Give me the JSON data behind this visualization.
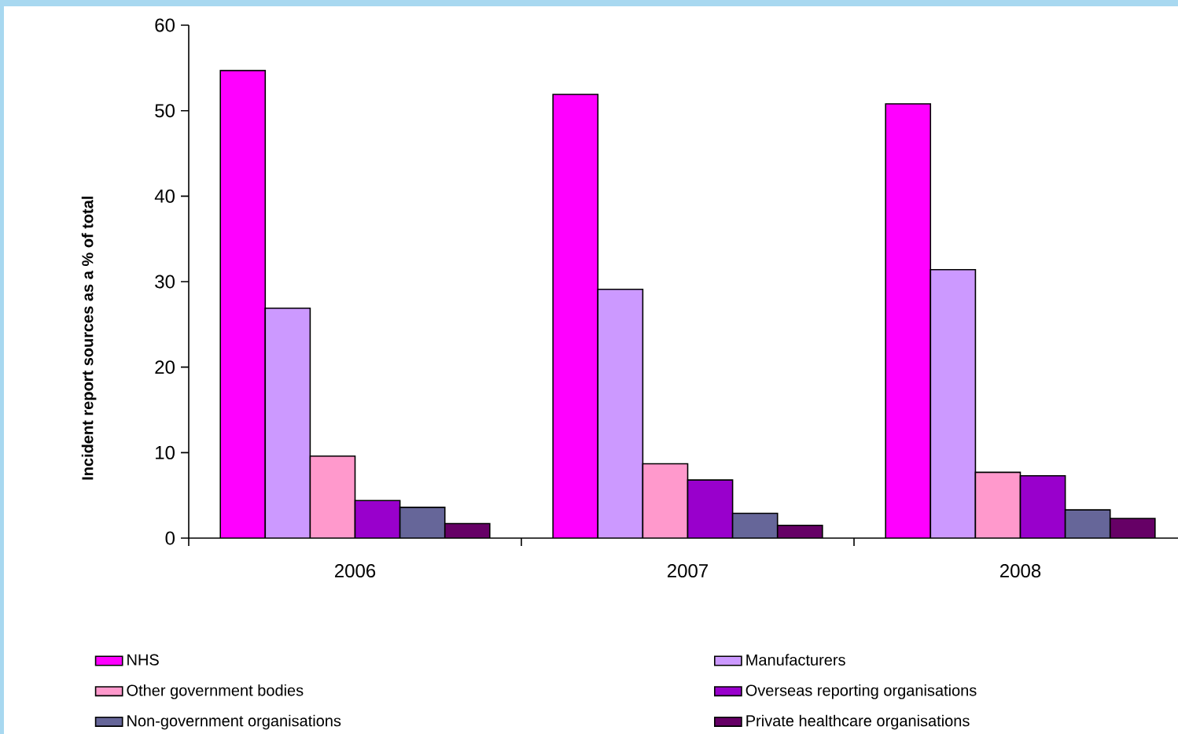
{
  "chart_data": {
    "type": "bar",
    "ylabel": "Incident report sources as a % of total",
    "categories": [
      "2006",
      "2007",
      "2008"
    ],
    "series": [
      {
        "name": "NHS",
        "color": "#ff00ff",
        "values": [
          54.7,
          51.9,
          50.8
        ]
      },
      {
        "name": "Manufacturers",
        "color": "#cc99ff",
        "values": [
          26.9,
          29.1,
          31.4
        ]
      },
      {
        "name": "Other government bodies",
        "color": "#ff99cc",
        "values": [
          9.6,
          8.7,
          7.7
        ]
      },
      {
        "name": "Overseas reporting organisations",
        "color": "#9900cc",
        "values": [
          4.4,
          6.8,
          7.3
        ]
      },
      {
        "name": "Non-government organisations",
        "color": "#666699",
        "values": [
          3.6,
          2.9,
          3.3
        ]
      },
      {
        "name": "Private healthcare organisations",
        "color": "#660066",
        "values": [
          1.7,
          1.5,
          2.3
        ]
      }
    ],
    "ylim": [
      0,
      60
    ],
    "yticks": [
      0,
      10,
      20,
      30,
      40,
      50,
      60
    ],
    "grid": false,
    "legend": "bottom"
  }
}
